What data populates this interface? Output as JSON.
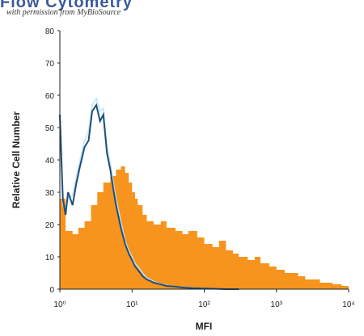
{
  "header": {
    "title": "Flow Cytometry",
    "watermark": "with permission from MyBioSource"
  },
  "chart_data": {
    "type": "area",
    "xlabel": "MFI",
    "ylabel": "Relative Cell Number",
    "x_scale": "log",
    "xlim": [
      1,
      10000
    ],
    "ylim": [
      0,
      80
    ],
    "x_ticks": [
      1,
      10,
      100,
      1000,
      10000
    ],
    "x_tick_labels": [
      "10⁰",
      "10¹",
      "10²",
      "10³",
      "10⁴"
    ],
    "y_ticks": [
      0,
      10,
      20,
      30,
      40,
      50,
      60,
      70,
      80
    ],
    "y_tick_labels": [
      "0",
      "10",
      "20",
      "30",
      "40",
      "50",
      "60",
      "70",
      "80"
    ],
    "grid": false,
    "series": [
      {
        "style": "filled",
        "color": "#f7941d",
        "x": [
          1,
          1.2,
          1.5,
          1.8,
          2.2,
          2.7,
          3.3,
          4,
          5,
          6,
          7,
          8,
          9,
          10,
          11,
          12,
          14,
          16,
          20,
          25,
          30,
          40,
          50,
          60,
          80,
          100,
          130,
          160,
          200,
          250,
          300,
          400,
          500,
          600,
          800,
          1000,
          1300,
          1600,
          2000,
          2500,
          3000,
          4000,
          5000,
          6000,
          8000,
          10000
        ],
        "y": [
          28,
          18,
          17,
          19,
          21,
          26,
          30,
          33,
          35,
          37,
          38,
          36,
          33,
          30,
          28,
          26,
          23,
          21,
          20,
          21,
          19,
          18,
          17,
          18,
          16,
          14,
          13,
          15,
          12,
          11,
          10,
          9,
          10,
          8,
          7,
          6,
          5,
          5,
          4,
          3,
          3,
          2,
          2,
          1.5,
          1,
          0.5
        ]
      },
      {
        "style": "line",
        "color": "#1f4e79",
        "x": [
          1,
          1.1,
          1.2,
          1.3,
          1.5,
          1.7,
          1.9,
          2.2,
          2.5,
          2.8,
          3.2,
          3.6,
          4,
          4.5,
          5,
          5.5,
          6,
          7,
          8,
          9,
          10,
          11,
          12,
          13,
          14,
          16,
          18,
          20,
          25,
          30,
          40,
          50,
          70,
          100,
          150,
          200,
          300
        ],
        "y": [
          54,
          28,
          23,
          30,
          26,
          33,
          38,
          44,
          46,
          55,
          57,
          52,
          54,
          42,
          37,
          31,
          26,
          19,
          14,
          11,
          9,
          7,
          6,
          5,
          4,
          3,
          2.5,
          2,
          1.5,
          1,
          0.8,
          0.5,
          0.3,
          0.2,
          0.1,
          0,
          0
        ]
      },
      {
        "style": "line",
        "color": "#bfe3f2",
        "x": [
          1,
          1.1,
          1.2,
          1.3,
          1.5,
          1.7,
          1.9,
          2.2,
          2.5,
          2.8,
          3.2,
          3.6,
          4,
          4.5,
          5,
          5.5,
          6,
          7,
          8,
          9,
          10,
          11,
          12,
          13,
          14,
          16,
          18,
          20,
          25,
          30,
          40,
          50,
          70,
          100,
          150,
          200,
          300
        ],
        "y": [
          51,
          26,
          25,
          28,
          29,
          35,
          40,
          46,
          49,
          57,
          59,
          55,
          56,
          44,
          39,
          33,
          28,
          21,
          15,
          12,
          10,
          8,
          7,
          6,
          5,
          3.5,
          3,
          2.3,
          1.7,
          1.2,
          0.9,
          0.6,
          0.4,
          0.2,
          0.1,
          0,
          0
        ]
      }
    ]
  }
}
